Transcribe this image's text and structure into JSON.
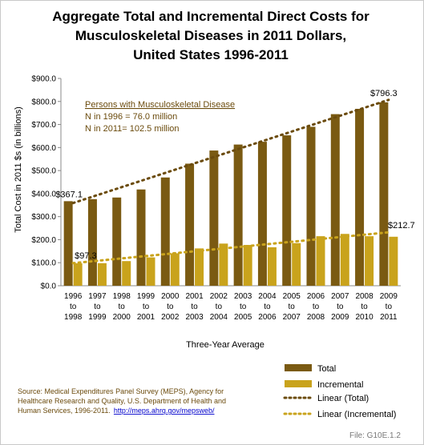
{
  "chart_data": {
    "type": "bar",
    "title_lines": [
      "Aggregate Total and Incremental Direct Costs for",
      "Musculoskeletal Diseases in 2011 Dollars,",
      "United States 1996-2011"
    ],
    "xlabel": "Three-Year  Average",
    "ylabel": "Total Cost in 2011 $s (in billions)",
    "ylim": [
      0,
      900
    ],
    "yticks": [
      "$0.0",
      "$100.0",
      "$200.0",
      "$300.0",
      "$400.0",
      "$500.0",
      "$600.0",
      "$700.0",
      "$800.0",
      "$900.0"
    ],
    "categories": [
      [
        "1996",
        "to",
        "1998"
      ],
      [
        "1997",
        "to",
        "1999"
      ],
      [
        "1998",
        "to",
        "2000"
      ],
      [
        "1999",
        "to",
        "2001"
      ],
      [
        "2000",
        "to",
        "2002"
      ],
      [
        "2001",
        "to",
        "2003"
      ],
      [
        "2002",
        "to",
        "2004"
      ],
      [
        "2003",
        "to",
        "2005"
      ],
      [
        "2004",
        "to",
        "2006"
      ],
      [
        "2005",
        "to",
        "2007"
      ],
      [
        "2006",
        "to",
        "2008"
      ],
      [
        "2007",
        "to",
        "2009"
      ],
      [
        "2008",
        "to",
        "2010"
      ],
      [
        "2009",
        "to",
        "2011"
      ]
    ],
    "series": [
      {
        "name": "Total",
        "color": "#7a5a12",
        "values": [
          367.1,
          376,
          383,
          418,
          470,
          530,
          587,
          613,
          625,
          653,
          690,
          745,
          768,
          796.3
        ]
      },
      {
        "name": "Incremental",
        "color": "#c9a31c",
        "values": [
          97.3,
          98,
          107,
          123,
          141,
          162,
          183,
          177,
          167,
          185,
          215,
          225,
          215,
          212.7
        ]
      }
    ],
    "trendlines": [
      {
        "name": "Linear (Total)",
        "color": "#6b4b0d",
        "from": 359,
        "to": 807
      },
      {
        "name": "Linear (Incremental)",
        "color": "#c9a31c",
        "from": 98,
        "to": 232
      }
    ],
    "data_labels": {
      "total_first": "$367.1",
      "total_last": "$796.3",
      "inc_first": "$97.3",
      "inc_last": "$212.7"
    },
    "annotation_lines": [
      "Persons with Musculoskeletal Disease",
      "N in 1996 =  76.0 million",
      "N in 2011= 102.5 million"
    ],
    "legend_position": "bottom-right",
    "grid": false
  },
  "source_lines": [
    "Source: Medical Expenditures Panel Survey (MEPS), Agency for",
    "Healthcare Research and Quality, U.S. Department of Health and",
    "Human Services, 1996-2011."
  ],
  "source_url": "http://meps.ahrq.gov/mepsweb/",
  "file_label": "File: G10E.1.2"
}
